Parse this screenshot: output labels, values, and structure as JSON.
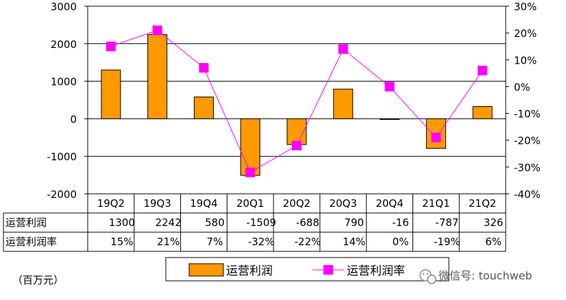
{
  "chart_data": {
    "type": "bar",
    "categories": [
      "19Q2",
      "19Q3",
      "19Q4",
      "20Q1",
      "20Q2",
      "20Q3",
      "20Q4",
      "21Q1",
      "21Q2"
    ],
    "series": [
      {
        "name": "运营利润",
        "type": "bar",
        "axis": "left",
        "values": [
          1300,
          2242,
          580,
          -1509,
          -688,
          790,
          -16,
          -787,
          326
        ],
        "color": "#FF9900"
      },
      {
        "name": "运营利润率",
        "type": "line",
        "axis": "right",
        "values": [
          15,
          21,
          7,
          -32,
          -22,
          14,
          0,
          -19,
          6
        ],
        "color": "#FF00FF"
      }
    ],
    "y_left": {
      "min": -2000,
      "max": 3000,
      "step": 1000,
      "ticks": [
        "-2000",
        "-1000",
        "0",
        "1000",
        "2000",
        "3000"
      ]
    },
    "y_right": {
      "min": -40,
      "max": 30,
      "step": 10,
      "ticks": [
        "-40%",
        "-30%",
        "-20%",
        "-10%",
        "0%",
        "10%",
        "20%",
        "30%"
      ]
    },
    "table": {
      "rows": [
        {
          "label": "运营利润",
          "cells": [
            "1300",
            "2242",
            "580",
            "-1509",
            "-688",
            "790",
            "-16",
            "-787",
            "326"
          ]
        },
        {
          "label": "运营利润率",
          "cells": [
            "15%",
            "21%",
            "7%",
            "-32%",
            "-22%",
            "14%",
            "0%",
            "-19%",
            "6%"
          ]
        }
      ]
    },
    "legend": {
      "position": "bottom",
      "items": [
        "运营利润",
        "运营利润率"
      ]
    },
    "unit_note": "（百万元）",
    "grid": true
  },
  "watermark": {
    "text": "微信号: touchweb",
    "icon": "wechat-icon"
  }
}
